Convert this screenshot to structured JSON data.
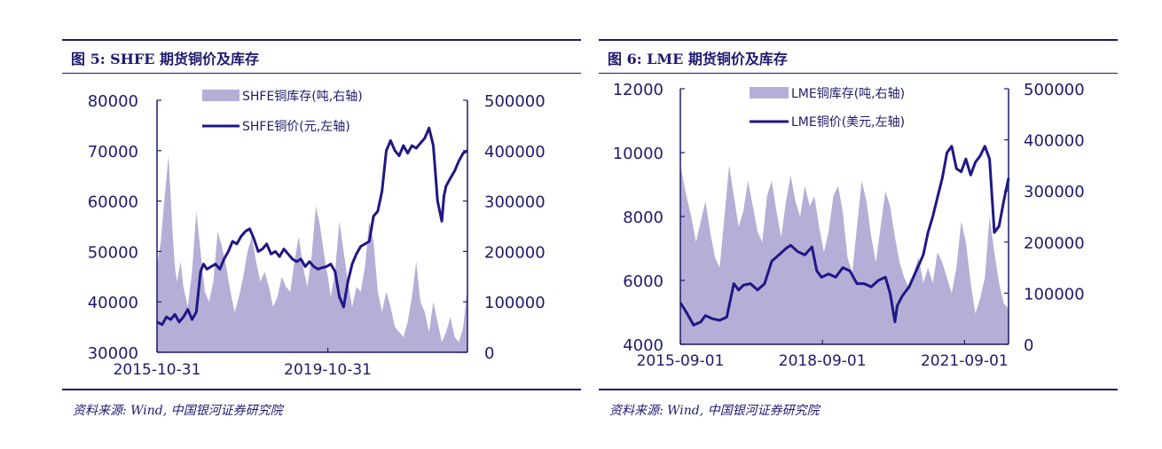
{
  "colors": {
    "navy": "#1d1a6e",
    "text": "#1f1a6b",
    "area": "#b5aed6",
    "line": "#1f1785"
  },
  "chart_data": [
    {
      "type": "area+line",
      "title": "图 5:  SHFE 期货铜价及库存",
      "source": "资料来源: Wind, 中国银河证券研究院",
      "x_start": 2015.83,
      "x_end": 2023.1,
      "x_tick_labels": [
        {
          "x": 2015.83,
          "label": "2015-10-31"
        },
        {
          "x": 2019.83,
          "label": "2019-10-31"
        }
      ],
      "ylim_left": [
        30000,
        80000
      ],
      "y_ticks_left": [
        "30000",
        "40000",
        "50000",
        "60000",
        "70000",
        "80000"
      ],
      "ylim_right": [
        0,
        500000
      ],
      "y_ticks_right": [
        "0",
        "100000",
        "200000",
        "300000",
        "400000",
        "500000"
      ],
      "series": [
        {
          "name": "SHFE铜库存(吨,右轴)",
          "kind": "area",
          "axis": "right",
          "x": [
            2015.83,
            2015.92,
            2016.0,
            2016.1,
            2016.2,
            2016.25,
            2016.3,
            2016.38,
            2016.45,
            2016.55,
            2016.65,
            2016.75,
            2016.85,
            2016.95,
            2017.05,
            2017.15,
            2017.25,
            2017.35,
            2017.45,
            2017.55,
            2017.65,
            2017.75,
            2017.85,
            2017.95,
            2018.05,
            2018.15,
            2018.25,
            2018.35,
            2018.45,
            2018.55,
            2018.65,
            2018.75,
            2018.85,
            2018.95,
            2019.05,
            2019.15,
            2019.25,
            2019.35,
            2019.45,
            2019.55,
            2019.65,
            2019.75,
            2019.83,
            2019.9,
            2020.0,
            2020.1,
            2020.2,
            2020.3,
            2020.4,
            2020.5,
            2020.6,
            2020.7,
            2020.8,
            2020.9,
            2021.0,
            2021.1,
            2021.2,
            2021.3,
            2021.4,
            2021.5,
            2021.6,
            2021.7,
            2021.8,
            2021.9,
            2022.0,
            2022.1,
            2022.2,
            2022.3,
            2022.4,
            2022.5,
            2022.6,
            2022.7,
            2022.8,
            2022.9,
            2023.0,
            2023.1
          ],
          "values": [
            170000,
            220000,
            300000,
            390000,
            230000,
            170000,
            140000,
            180000,
            130000,
            90000,
            160000,
            280000,
            200000,
            120000,
            100000,
            140000,
            240000,
            210000,
            170000,
            120000,
            80000,
            110000,
            150000,
            200000,
            230000,
            180000,
            140000,
            160000,
            130000,
            90000,
            110000,
            150000,
            130000,
            120000,
            180000,
            230000,
            170000,
            130000,
            190000,
            290000,
            250000,
            190000,
            150000,
            110000,
            160000,
            260000,
            200000,
            140000,
            90000,
            130000,
            120000,
            170000,
            260000,
            220000,
            120000,
            80000,
            120000,
            90000,
            50000,
            40000,
            30000,
            60000,
            110000,
            180000,
            100000,
            80000,
            40000,
            100000,
            60000,
            20000,
            40000,
            70000,
            30000,
            20000,
            50000,
            130000
          ]
        },
        {
          "name": "SHFE铜价(元,左轴)",
          "kind": "line",
          "axis": "left",
          "x": [
            2015.83,
            2015.95,
            2016.05,
            2016.15,
            2016.25,
            2016.35,
            2016.45,
            2016.55,
            2016.65,
            2016.75,
            2016.85,
            2016.92,
            2017.0,
            2017.1,
            2017.2,
            2017.3,
            2017.4,
            2017.5,
            2017.6,
            2017.7,
            2017.8,
            2017.9,
            2018.0,
            2018.1,
            2018.2,
            2018.3,
            2018.4,
            2018.5,
            2018.6,
            2018.7,
            2018.8,
            2018.9,
            2019.0,
            2019.1,
            2019.2,
            2019.3,
            2019.4,
            2019.5,
            2019.6,
            2019.7,
            2019.8,
            2019.9,
            2020.0,
            2020.1,
            2020.2,
            2020.23,
            2020.3,
            2020.4,
            2020.5,
            2020.6,
            2020.7,
            2020.8,
            2020.9,
            2021.0,
            2021.1,
            2021.15,
            2021.2,
            2021.3,
            2021.4,
            2021.5,
            2021.6,
            2021.7,
            2021.8,
            2021.9,
            2022.0,
            2022.1,
            2022.2,
            2022.3,
            2022.4,
            2022.5,
            2022.55,
            2022.6,
            2022.7,
            2022.8,
            2022.9,
            2023.0,
            2023.1
          ],
          "values": [
            36000,
            35500,
            37000,
            36500,
            37500,
            36000,
            37000,
            38500,
            36500,
            38000,
            46000,
            47500,
            46500,
            47000,
            47500,
            46500,
            48500,
            50000,
            52000,
            51500,
            53000,
            54000,
            54500,
            52500,
            50000,
            50500,
            51500,
            49500,
            50000,
            49000,
            50500,
            49500,
            48500,
            48000,
            48500,
            47000,
            48000,
            47000,
            46500,
            46800,
            47000,
            47500,
            46000,
            41000,
            39000,
            40500,
            44000,
            47500,
            49500,
            51000,
            51500,
            52000,
            57000,
            58000,
            62000,
            66000,
            70000,
            72000,
            70000,
            69000,
            71000,
            69500,
            71000,
            70500,
            71500,
            72500,
            74500,
            71000,
            60000,
            56000,
            61000,
            63000,
            64500,
            66000,
            68000,
            69500,
            70000
          ]
        }
      ],
      "legend": [
        "SHFE铜库存(吨,右轴)",
        "SHFE铜价(元,左轴)"
      ]
    },
    {
      "type": "area+line",
      "title": "图 6:  LME 期货铜价及库存",
      "source": "资料来源: Wind, 中国银河证券研究院",
      "x_start": 2015.67,
      "x_end": 2022.6,
      "x_tick_labels": [
        {
          "x": 2015.67,
          "label": "2015-09-01"
        },
        {
          "x": 2018.67,
          "label": "2018-09-01"
        },
        {
          "x": 2021.67,
          "label": "2021-09-01"
        }
      ],
      "ylim_left": [
        4000,
        12000
      ],
      "y_ticks_left": [
        "4000",
        "6000",
        "8000",
        "10000",
        "12000"
      ],
      "ylim_right": [
        0,
        500000
      ],
      "y_ticks_right": [
        "0",
        "100000",
        "200000",
        "300000",
        "400000",
        "500000"
      ],
      "series": [
        {
          "name": "LME铜库存(吨,右轴)",
          "kind": "area",
          "axis": "right",
          "x": [
            2015.67,
            2015.8,
            2015.9,
            2016.0,
            2016.1,
            2016.2,
            2016.3,
            2016.4,
            2016.5,
            2016.6,
            2016.7,
            2016.8,
            2016.9,
            2017.0,
            2017.1,
            2017.2,
            2017.3,
            2017.4,
            2017.5,
            2017.6,
            2017.7,
            2017.8,
            2017.9,
            2018.0,
            2018.1,
            2018.2,
            2018.3,
            2018.4,
            2018.5,
            2018.6,
            2018.7,
            2018.8,
            2018.9,
            2019.0,
            2019.1,
            2019.2,
            2019.3,
            2019.4,
            2019.5,
            2019.6,
            2019.7,
            2019.8,
            2019.9,
            2020.0,
            2020.1,
            2020.2,
            2020.3,
            2020.4,
            2020.5,
            2020.6,
            2020.7,
            2020.8,
            2020.9,
            2021.0,
            2021.1,
            2021.2,
            2021.3,
            2021.4,
            2021.5,
            2021.6,
            2021.7,
            2021.8,
            2021.9,
            2022.0,
            2022.1,
            2022.2,
            2022.3,
            2022.4,
            2022.5,
            2022.6
          ],
          "values": [
            350000,
            290000,
            250000,
            200000,
            240000,
            280000,
            220000,
            170000,
            150000,
            250000,
            350000,
            290000,
            230000,
            260000,
            320000,
            270000,
            220000,
            200000,
            290000,
            320000,
            260000,
            210000,
            280000,
            330000,
            280000,
            250000,
            310000,
            270000,
            290000,
            230000,
            180000,
            220000,
            290000,
            310000,
            260000,
            170000,
            140000,
            230000,
            320000,
            280000,
            210000,
            160000,
            230000,
            300000,
            270000,
            210000,
            160000,
            130000,
            110000,
            140000,
            170000,
            120000,
            150000,
            120000,
            180000,
            160000,
            130000,
            100000,
            150000,
            240000,
            200000,
            120000,
            60000,
            90000,
            130000,
            250000,
            180000,
            120000,
            80000,
            70000
          ]
        },
        {
          "name": "LME铜价(美元,左轴)",
          "kind": "line",
          "axis": "left",
          "x": [
            2015.67,
            2015.8,
            2015.95,
            2016.1,
            2016.2,
            2016.35,
            2016.5,
            2016.65,
            2016.8,
            2016.9,
            2017.0,
            2017.15,
            2017.3,
            2017.45,
            2017.6,
            2017.75,
            2017.9,
            2018.0,
            2018.15,
            2018.3,
            2018.45,
            2018.55,
            2018.65,
            2018.8,
            2018.95,
            2019.1,
            2019.25,
            2019.4,
            2019.55,
            2019.7,
            2019.85,
            2020.0,
            2020.1,
            2020.2,
            2020.25,
            2020.35,
            2020.5,
            2020.65,
            2020.8,
            2020.9,
            2021.0,
            2021.1,
            2021.2,
            2021.3,
            2021.4,
            2021.5,
            2021.6,
            2021.7,
            2021.8,
            2021.9,
            2022.0,
            2022.1,
            2022.2,
            2022.3,
            2022.4,
            2022.5,
            2022.6
          ],
          "values": [
            5300,
            5000,
            4600,
            4700,
            4900,
            4800,
            4750,
            4850,
            5900,
            5700,
            5850,
            5900,
            5700,
            5900,
            6600,
            6800,
            7000,
            7100,
            6900,
            6800,
            7050,
            6300,
            6100,
            6200,
            6100,
            6400,
            6300,
            5900,
            5900,
            5800,
            6000,
            6100,
            5600,
            4700,
            5200,
            5500,
            5800,
            6300,
            6800,
            7500,
            8000,
            8600,
            9200,
            10000,
            10200,
            9500,
            9400,
            9800,
            9300,
            9700,
            9900,
            10200,
            9800,
            7500,
            7700,
            8500,
            9200
          ]
        }
      ],
      "legend": [
        "LME铜库存(吨,右轴)",
        "LME铜价(美元,左轴)"
      ]
    }
  ]
}
